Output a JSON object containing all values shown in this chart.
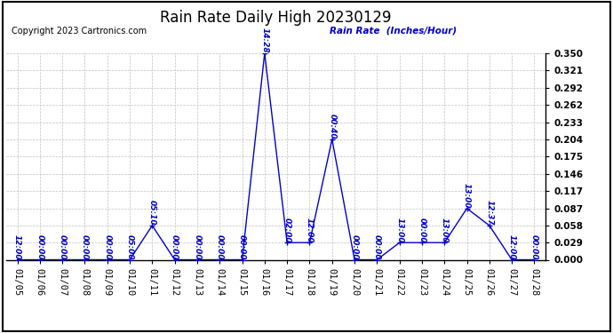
{
  "title": "Rain Rate Daily High 20230129",
  "copyright": "Copyright 2023 Cartronics.com",
  "legend_label": "Rain Rate  (Inches/Hour)",
  "line_color": "#0000cc",
  "background_color": "#ffffff",
  "grid_color": "#c0c0c0",
  "x_labels": [
    "01/05",
    "01/06",
    "01/07",
    "01/08",
    "01/09",
    "01/10",
    "01/11",
    "01/12",
    "01/13",
    "01/14",
    "01/15",
    "01/16",
    "01/17",
    "01/18",
    "01/19",
    "01/20",
    "01/21",
    "01/22",
    "01/23",
    "01/24",
    "01/25",
    "01/26",
    "01/27",
    "01/28"
  ],
  "x_values": [
    0,
    1,
    2,
    3,
    4,
    5,
    6,
    7,
    8,
    9,
    10,
    11,
    12,
    13,
    14,
    15,
    16,
    17,
    18,
    19,
    20,
    21,
    22,
    23
  ],
  "y_values": [
    0.0,
    0.0,
    0.0,
    0.0,
    0.0,
    0.0,
    0.058,
    0.0,
    0.0,
    0.0,
    0.0,
    0.35,
    0.029,
    0.029,
    0.204,
    0.0,
    0.0,
    0.029,
    0.029,
    0.029,
    0.087,
    0.058,
    0.0,
    0.0
  ],
  "point_labels": [
    "12:00",
    "00:00",
    "00:00",
    "00:00",
    "00:00",
    "05:00",
    "05:10",
    "00:00",
    "00:00",
    "00:00",
    "00:00",
    "14:28",
    "02:00",
    "12:00",
    "00:40",
    "00:00",
    "00:00",
    "13:00",
    "00:00",
    "13:00",
    "13:00",
    "12:37",
    "12:00",
    "00:00"
  ],
  "ylim": [
    0.0,
    0.35
  ],
  "yticks": [
    0.0,
    0.029,
    0.058,
    0.087,
    0.117,
    0.146,
    0.175,
    0.204,
    0.233,
    0.262,
    0.292,
    0.321,
    0.35
  ],
  "title_fontsize": 12,
  "label_fontsize": 6.5,
  "tick_fontsize": 7.5,
  "copyright_fontsize": 7
}
